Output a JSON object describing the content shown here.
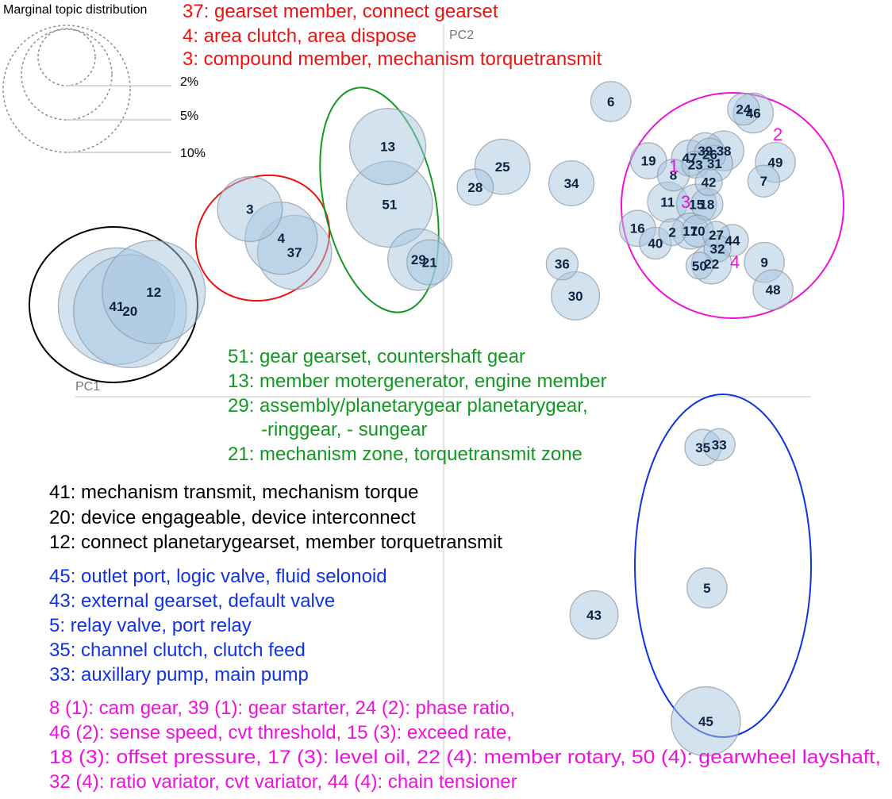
{
  "chart_data": {
    "type": "scatter",
    "title": "",
    "xlabel": "PC1",
    "ylabel": "PC2",
    "marginal_legend": {
      "title": "Marginal topic distribution",
      "levels": [
        "2%",
        "5%",
        "10%"
      ]
    },
    "colors": {
      "bubble_fill": "#a9c8e0",
      "bubble_stroke": "#8b96a3",
      "label": "#0f2340",
      "red": "#ee1111",
      "green": "#119922",
      "black": "#000000",
      "blue": "#1133dd",
      "magenta": "#ee11dd"
    },
    "topics": [
      {
        "id": "41",
        "x": 0.0,
        "y": 0.0,
        "size": 9.4
      },
      {
        "id": "20",
        "x": 0.023,
        "y": -0.009,
        "size": 8.8
      },
      {
        "id": "12",
        "x": 0.064,
        "y": 0.026,
        "size": 7.3
      },
      {
        "id": "3",
        "x": 0.23,
        "y": 0.177,
        "size": 2.9
      },
      {
        "id": "4",
        "x": 0.284,
        "y": 0.124,
        "size": 3.6
      },
      {
        "id": "37",
        "x": 0.307,
        "y": 0.098,
        "size": 3.8
      },
      {
        "id": "13",
        "x": 0.468,
        "y": 0.291,
        "size": 4.0
      },
      {
        "id": "51",
        "x": 0.471,
        "y": 0.186,
        "size": 5.1
      },
      {
        "id": "29",
        "x": 0.521,
        "y": 0.085,
        "size": 2.6
      },
      {
        "id": "21",
        "x": 0.54,
        "y": 0.08,
        "size": 1.4
      },
      {
        "id": "28",
        "x": 0.619,
        "y": 0.217,
        "size": 0.9
      },
      {
        "id": "25",
        "x": 0.666,
        "y": 0.254,
        "size": 2.1
      },
      {
        "id": "6",
        "x": 0.853,
        "y": 0.373,
        "size": 1.1
      },
      {
        "id": "34",
        "x": 0.785,
        "y": 0.224,
        "size": 1.4
      },
      {
        "id": "36",
        "x": 0.769,
        "y": 0.077,
        "size": 0.7
      },
      {
        "id": "30",
        "x": 0.792,
        "y": 0.019,
        "size": 1.6
      },
      {
        "id": "19",
        "x": 0.918,
        "y": 0.265,
        "size": 0.9
      },
      {
        "id": "8",
        "x": 0.961,
        "y": 0.239,
        "size": 0.7
      },
      {
        "id": "11",
        "x": 0.951,
        "y": 0.19,
        "size": 1.1
      },
      {
        "id": "16",
        "x": 0.899,
        "y": 0.142,
        "size": 0.9
      },
      {
        "id": "40",
        "x": 0.93,
        "y": 0.115,
        "size": 0.7
      },
      {
        "id": "2",
        "x": 0.959,
        "y": 0.135,
        "size": 0.5
      },
      {
        "id": "47",
        "x": 0.989,
        "y": 0.27,
        "size": 0.9
      },
      {
        "id": "23",
        "x": 0.999,
        "y": 0.258,
        "size": 0.5
      },
      {
        "id": "39",
        "x": 1.016,
        "y": 0.283,
        "size": 0.9
      },
      {
        "id": "26",
        "x": 1.024,
        "y": 0.277,
        "size": 0.7
      },
      {
        "id": "38",
        "x": 1.048,
        "y": 0.283,
        "size": 1.1
      },
      {
        "id": "31",
        "x": 1.032,
        "y": 0.26,
        "size": 0.9
      },
      {
        "id": "42",
        "x": 1.022,
        "y": 0.226,
        "size": 0.5
      },
      {
        "id": "15",
        "x": 1.001,
        "y": 0.186,
        "size": 1.1
      },
      {
        "id": "18",
        "x": 1.019,
        "y": 0.186,
        "size": 0.7
      },
      {
        "id": "17",
        "x": 0.99,
        "y": 0.137,
        "size": 0.9
      },
      {
        "id": "10",
        "x": 1.003,
        "y": 0.137,
        "size": 0.7
      },
      {
        "id": "27",
        "x": 1.035,
        "y": 0.13,
        "size": 0.5
      },
      {
        "id": "44",
        "x": 1.063,
        "y": 0.12,
        "size": 0.7
      },
      {
        "id": "32",
        "x": 1.037,
        "y": 0.105,
        "size": 0.5
      },
      {
        "id": "22",
        "x": 1.027,
        "y": 0.077,
        "size": 1.1
      },
      {
        "id": "50",
        "x": 1.006,
        "y": 0.074,
        "size": 0.5
      },
      {
        "id": "24",
        "x": 1.082,
        "y": 0.359,
        "size": 0.7
      },
      {
        "id": "46",
        "x": 1.099,
        "y": 0.352,
        "size": 1.1
      },
      {
        "id": "49",
        "x": 1.137,
        "y": 0.262,
        "size": 1.1
      },
      {
        "id": "7",
        "x": 1.117,
        "y": 0.228,
        "size": 0.7
      },
      {
        "id": "9",
        "x": 1.118,
        "y": 0.08,
        "size": 1.1
      },
      {
        "id": "48",
        "x": 1.133,
        "y": 0.03,
        "size": 1.1
      },
      {
        "id": "35",
        "x": 1.012,
        "y": -0.257,
        "size": 0.9
      },
      {
        "id": "33",
        "x": 1.04,
        "y": -0.252,
        "size": 0.7
      },
      {
        "id": "5",
        "x": 1.019,
        "y": -0.513,
        "size": 1.1
      },
      {
        "id": "43",
        "x": 0.824,
        "y": -0.562,
        "size": 1.6
      },
      {
        "id": "45",
        "x": 1.017,
        "y": -0.756,
        "size": 3.3
      }
    ],
    "clusters": [
      {
        "color": "black",
        "members": [
          "41",
          "20",
          "12"
        ]
      },
      {
        "color": "red",
        "members": [
          "3",
          "4",
          "37"
        ]
      },
      {
        "color": "green",
        "members": [
          "13",
          "51",
          "29",
          "21"
        ]
      },
      {
        "color": "magenta",
        "members": [
          "19",
          "8",
          "11",
          "16",
          "40",
          "2",
          "47",
          "23",
          "39",
          "26",
          "38",
          "31",
          "42",
          "15",
          "18",
          "17",
          "10",
          "27",
          "44",
          "32",
          "22",
          "50",
          "24",
          "46",
          "49",
          "7",
          "9",
          "48"
        ]
      },
      {
        "color": "blue",
        "members": [
          "35",
          "33",
          "5",
          "43",
          "45"
        ]
      }
    ],
    "subcluster_labels": [
      "1",
      "2",
      "3",
      "4"
    ],
    "annotations": {
      "red": [
        "37: gearset member, connect gearset",
        "4: area clutch, area dispose",
        "3: compound member, mechanism torquetransmit"
      ],
      "green": [
        "51: gear gearset, countershaft gear",
        "13: member motergenerator, engine member",
        "29: assembly/planetarygear planetarygear,",
        "-ringgear, - sungear",
        "21: mechanism zone, torquetransmit zone"
      ],
      "black": [
        "41: mechanism transmit, mechanism torque",
        "20: device engageable, device interconnect",
        "12: connect planetarygearset, member torquetransmit"
      ],
      "blue": [
        "45: outlet port, logic valve, fluid selonoid",
        "43: external gearset, default valve",
        "5: relay valve, port relay",
        "35: channel clutch, clutch feed",
        "33: auxillary pump, main pump"
      ],
      "magenta": [
        "8 (1): cam gear, 39 (1): gear starter, 24 (2): phase ratio,",
        "46 (2): sense speed, cvt threshold, 15 (3): exceed rate,",
        "18 (3): offset pressure, 17 (3): level oil, 22 (4): member rotary, 50 (4): gearwheel layshaft,",
        "32 (4): ratio variator, cvt variator, 44 (4): chain tensioner"
      ]
    }
  }
}
